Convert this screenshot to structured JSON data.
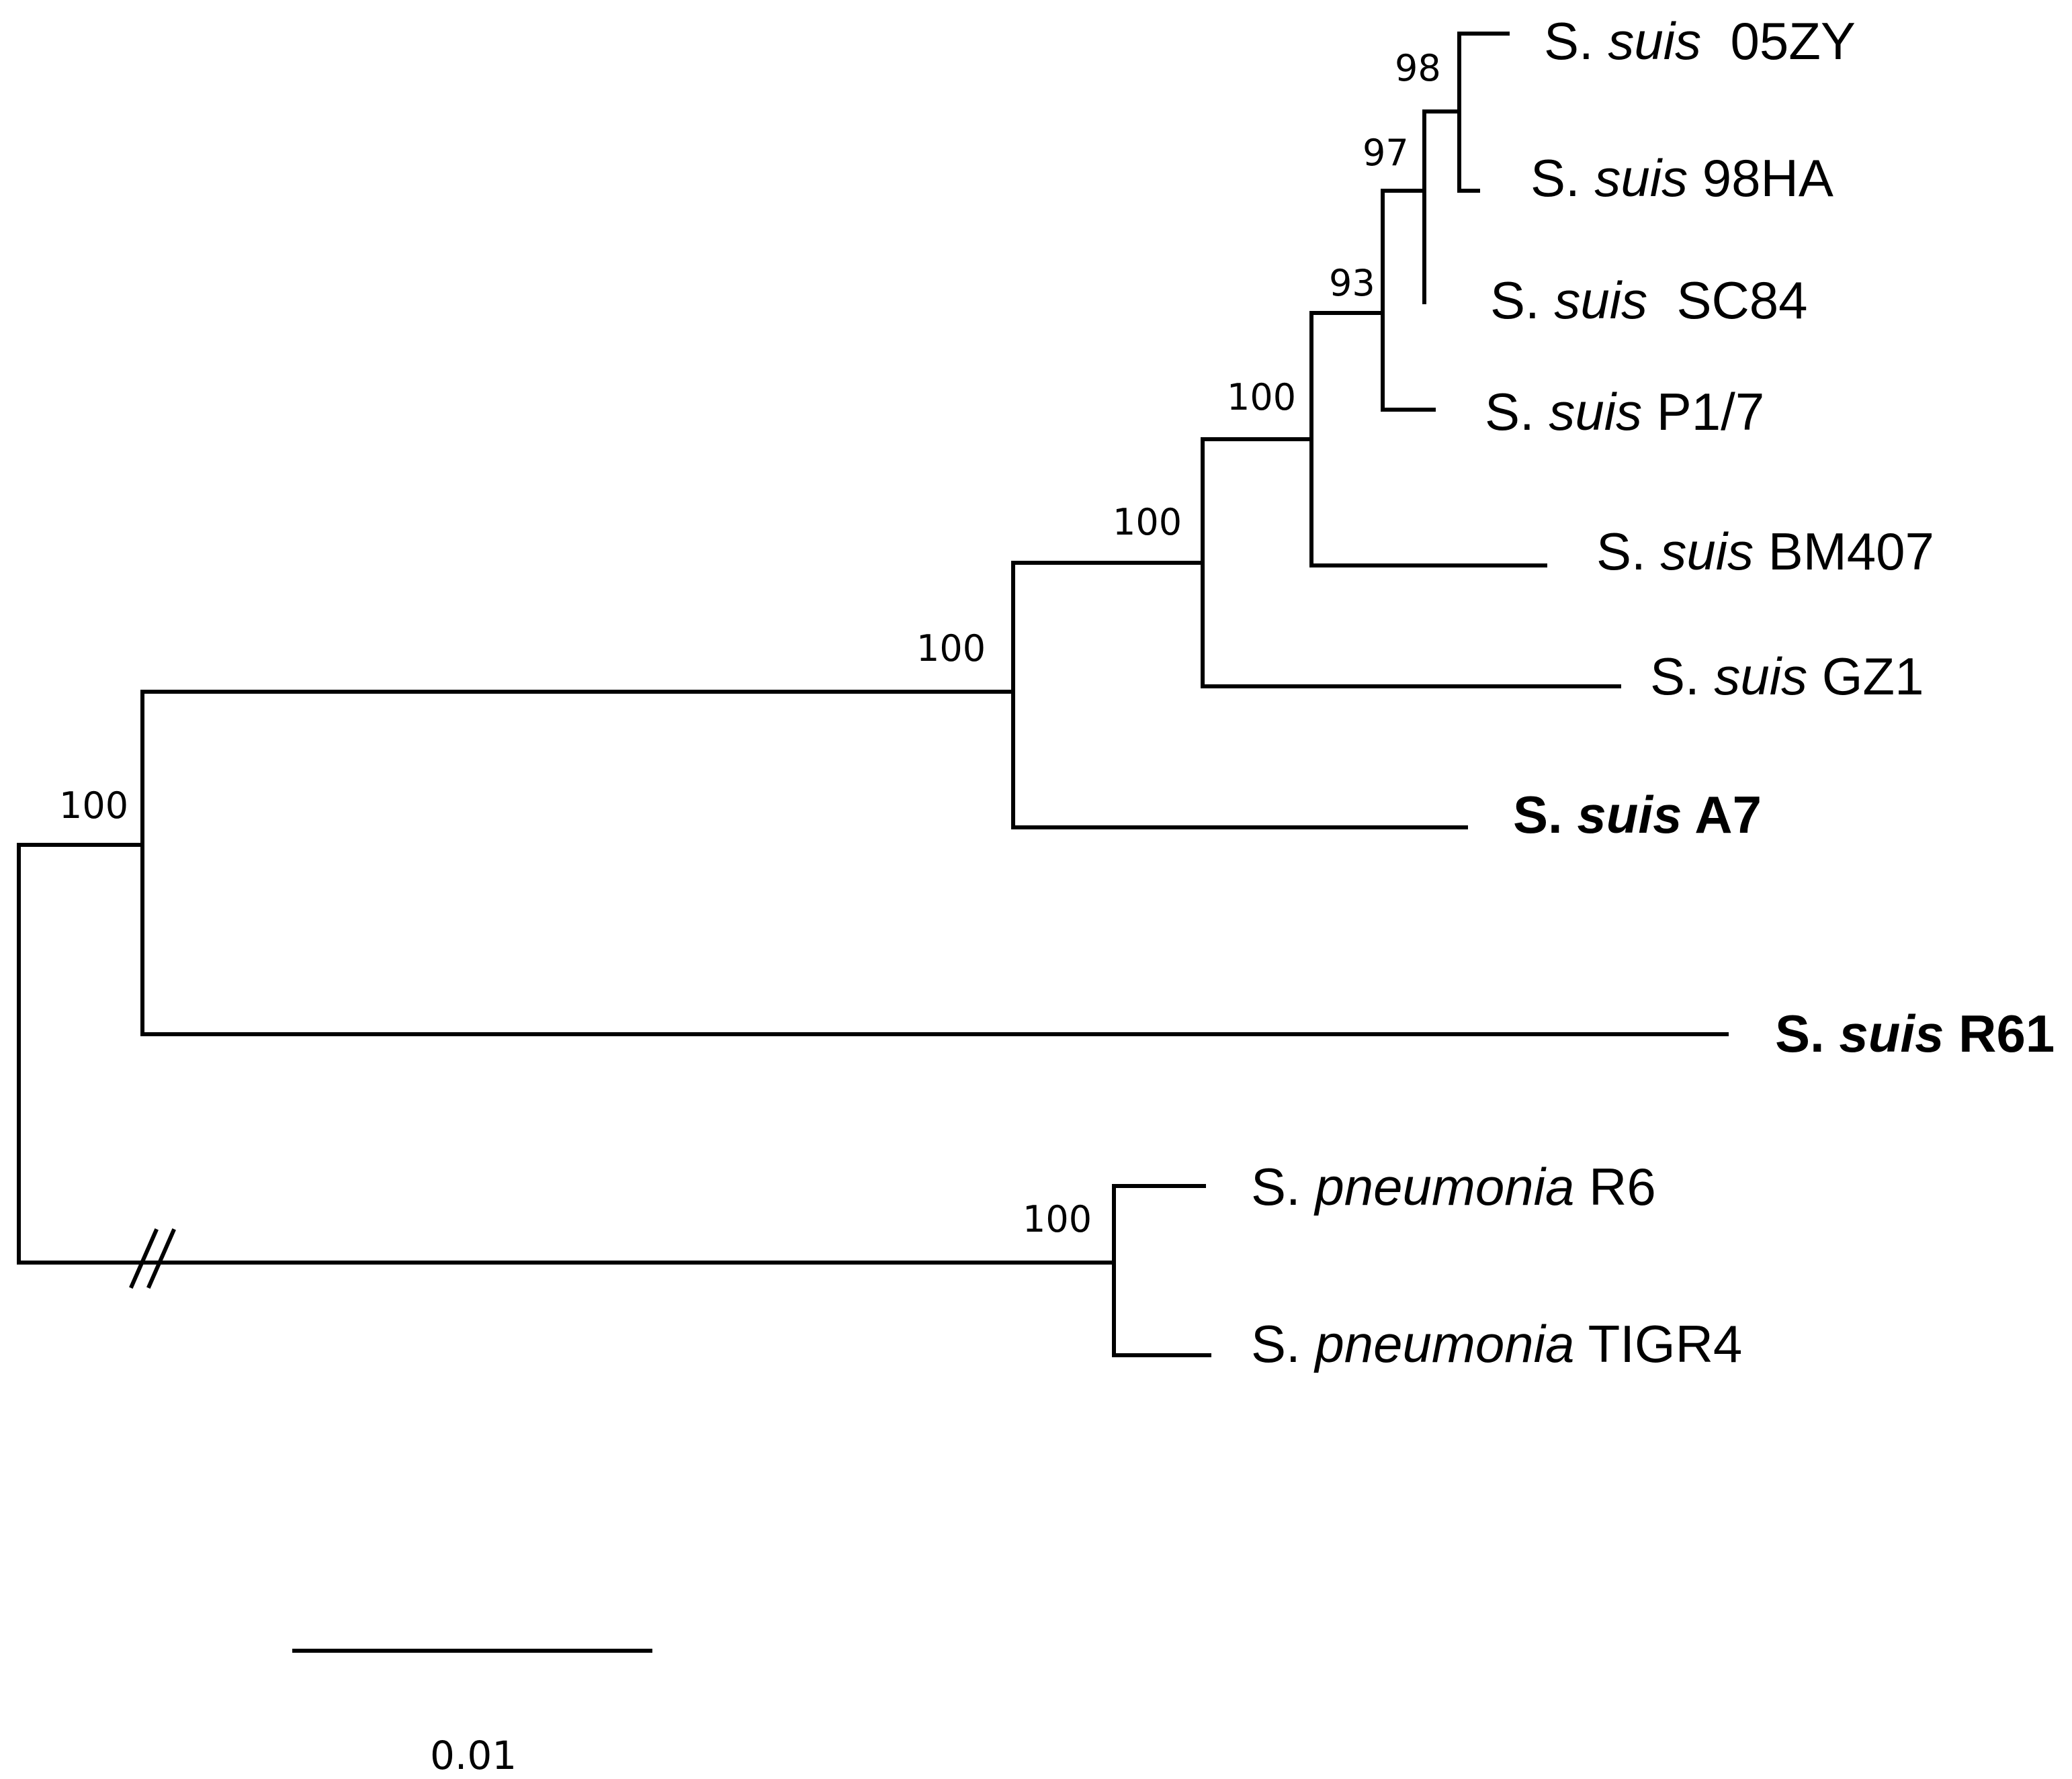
{
  "taxa": {
    "05ZY": {
      "prefix": "S.",
      "genus": "suis",
      "strain": "05ZY",
      "bold": false
    },
    "98HA": {
      "prefix": "S.",
      "genus": "suis",
      "strain": "98HA",
      "bold": false
    },
    "SC84": {
      "prefix": "S.",
      "genus": "suis",
      "strain": "SC84",
      "bold": false
    },
    "P17": {
      "prefix": "S.",
      "genus": "suis",
      "strain": "P1/7",
      "bold": false
    },
    "BM407": {
      "prefix": "S.",
      "genus": "suis",
      "strain": "BM407",
      "bold": false
    },
    "GZ1": {
      "prefix": "S.",
      "genus": "suis",
      "strain": "GZ1",
      "bold": false
    },
    "A7": {
      "prefix": "S.",
      "genus": "suis",
      "strain": "A7",
      "bold": true
    },
    "R61": {
      "prefix": "S.",
      "genus": "suis",
      "strain": "R61",
      "bold": true
    },
    "R6": {
      "prefix": "S.",
      "genus": "pneumonia",
      "strain": "R6",
      "bold": false
    },
    "TIGR4": {
      "prefix": "S.",
      "genus": "pneumonia",
      "strain": "TIGR4",
      "bold": false
    }
  },
  "support": {
    "n98": "98",
    "n97": "97",
    "n93": "93",
    "n100_a": "100",
    "n100_b": "100",
    "n100_c": "100",
    "n100_root": "100",
    "n100_pneumo": "100"
  },
  "scale_bar": {
    "label": "0.01",
    "length": 0.01
  }
}
